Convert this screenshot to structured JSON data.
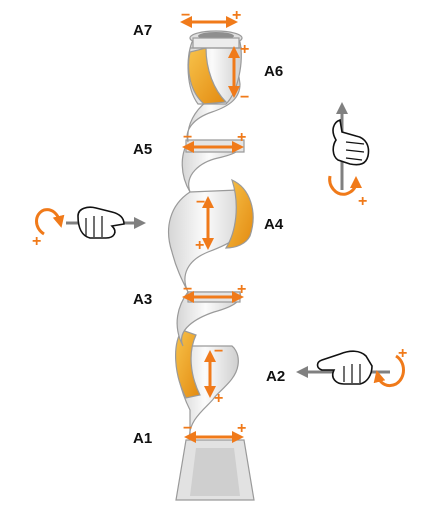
{
  "axes": [
    {
      "id": "a1",
      "label": "A1"
    },
    {
      "id": "a2",
      "label": "A2"
    },
    {
      "id": "a3",
      "label": "A3"
    },
    {
      "id": "a4",
      "label": "A4"
    },
    {
      "id": "a5",
      "label": "A5"
    },
    {
      "id": "a6",
      "label": "A6"
    },
    {
      "id": "a7",
      "label": "A7"
    }
  ],
  "signs": {
    "plus": "+",
    "minus": "−"
  },
  "colors": {
    "arrow": "#f07a1a",
    "cover": "#f2a21b",
    "body": "#e9e9e9",
    "outline": "#9a9a9a",
    "gray_arrow": "#808080"
  },
  "legend_icons": [
    "thumb-up-rotation-icon",
    "thumb-left-rotation-icon",
    "thumb-right-rotation-icon"
  ]
}
